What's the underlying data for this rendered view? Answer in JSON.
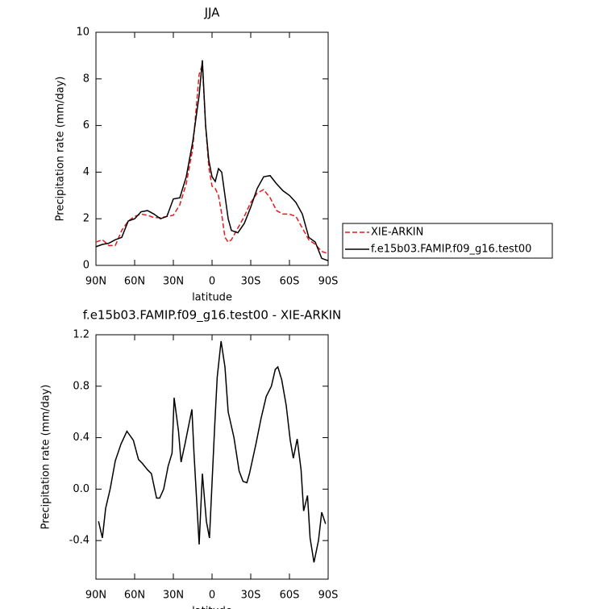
{
  "chart_data": [
    {
      "type": "line",
      "title": "JJA",
      "x_label": "latitude",
      "y_label": "Precipitation rate (mm/day)",
      "x": [
        90,
        85,
        80,
        75,
        70,
        65,
        60,
        55,
        50,
        45,
        40,
        35,
        30,
        25,
        20,
        15,
        10,
        7.5,
        5,
        2.5,
        0,
        -2.5,
        -5,
        -7.5,
        -10,
        -12.5,
        -15,
        -20,
        -25,
        -30,
        -35,
        -40,
        -45,
        -50,
        -55,
        -60,
        -65,
        -70,
        -75,
        -80,
        -85,
        -90
      ],
      "series": [
        {
          "name": "XIE-ARKIN",
          "color": "#e41a1c",
          "style": "dashed",
          "values": [
            1.0,
            1.1,
            0.85,
            0.85,
            1.5,
            1.9,
            2.1,
            2.2,
            2.15,
            2.05,
            2.05,
            2.1,
            2.15,
            2.6,
            3.5,
            5.0,
            8.2,
            8.6,
            6.0,
            4.2,
            3.4,
            3.3,
            3.0,
            2.2,
            1.2,
            1.0,
            1.1,
            1.6,
            2.1,
            2.7,
            3.1,
            3.25,
            2.9,
            2.35,
            2.2,
            2.2,
            2.1,
            1.6,
            1.1,
            0.9,
            0.6,
            0.5
          ]
        },
        {
          "name": "f.e15b03.FAMIP.f09_g16.test00",
          "color": "#000000",
          "style": "solid",
          "values": [
            0.8,
            0.9,
            0.95,
            1.1,
            1.2,
            1.9,
            2.0,
            2.3,
            2.35,
            2.2,
            2.0,
            2.1,
            2.85,
            2.9,
            3.8,
            5.3,
            7.3,
            8.8,
            6.0,
            4.5,
            3.8,
            3.6,
            4.15,
            4.0,
            3.0,
            2.0,
            1.5,
            1.4,
            1.8,
            2.5,
            3.3,
            3.8,
            3.85,
            3.5,
            3.2,
            3.0,
            2.7,
            2.2,
            1.2,
            1.0,
            0.3,
            0.2
          ]
        }
      ],
      "xlim": [
        90,
        -90
      ],
      "xticks": [
        {
          "value": 90,
          "label": "90N"
        },
        {
          "value": 60,
          "label": "60N"
        },
        {
          "value": 30,
          "label": "30N"
        },
        0,
        {
          "value": -30,
          "label": "30S"
        },
        {
          "value": -60,
          "label": "60S"
        },
        {
          "value": -90,
          "label": "90S"
        }
      ],
      "ylim": [
        0,
        10
      ],
      "yticks": [
        0,
        2,
        4,
        6,
        8,
        10
      ],
      "legend": "right"
    },
    {
      "type": "line",
      "title": "f.e15b03.FAMIP.f09_g16.test00 - XIE-ARKIN",
      "x_label": "latitude",
      "y_label": "Precipitation rate (mm/day)",
      "x": [
        88,
        85,
        82.5,
        79,
        75,
        70.6,
        66,
        61,
        57,
        54,
        50,
        47,
        43,
        40.6,
        37.5,
        34,
        31,
        29.4,
        26,
        24,
        21,
        18,
        15.6,
        14,
        10,
        7.5,
        4.4,
        2,
        -2,
        -4,
        -7,
        -10,
        -12.5,
        -17,
        -21,
        -24,
        -27,
        -29,
        -34,
        -38,
        -42,
        -46,
        -49,
        -51,
        -54,
        -57.5,
        -60.6,
        -63,
        -66,
        -69,
        -71,
        -74,
        -76,
        -79,
        -82.5,
        -85,
        -88
      ],
      "series": [
        {
          "name": "f.e15b03.FAMIP.f09_g16.test00 - XIE-ARKIN",
          "color": "#000000",
          "style": "solid",
          "values": [
            -0.25,
            -0.38,
            -0.15,
            0.0,
            0.22,
            0.35,
            0.45,
            0.38,
            0.23,
            0.2,
            0.15,
            0.12,
            -0.07,
            -0.07,
            0.0,
            0.18,
            0.28,
            0.71,
            0.45,
            0.21,
            0.35,
            0.5,
            0.62,
            0.28,
            -0.43,
            0.12,
            -0.25,
            -0.38,
            0.48,
            0.87,
            1.15,
            0.95,
            0.6,
            0.4,
            0.14,
            0.06,
            0.05,
            0.12,
            0.35,
            0.55,
            0.72,
            0.8,
            0.93,
            0.95,
            0.85,
            0.65,
            0.38,
            0.24,
            0.39,
            0.15,
            -0.17,
            -0.05,
            -0.38,
            -0.57,
            -0.4,
            -0.18,
            -0.27
          ]
        }
      ],
      "xlim": [
        90,
        -90
      ],
      "xticks": [
        {
          "value": 90,
          "label": "90N"
        },
        {
          "value": 60,
          "label": "60N"
        },
        {
          "value": 30,
          "label": "30N"
        },
        0,
        {
          "value": -30,
          "label": "30S"
        },
        {
          "value": -60,
          "label": "60S"
        },
        {
          "value": -90,
          "label": "90S"
        }
      ],
      "ylim": [
        -0.7,
        1.2
      ],
      "yticks": [
        -0.4,
        {
          "value": 0,
          "label": "0.0"
        },
        0.4,
        0.8,
        1.2
      ]
    }
  ]
}
